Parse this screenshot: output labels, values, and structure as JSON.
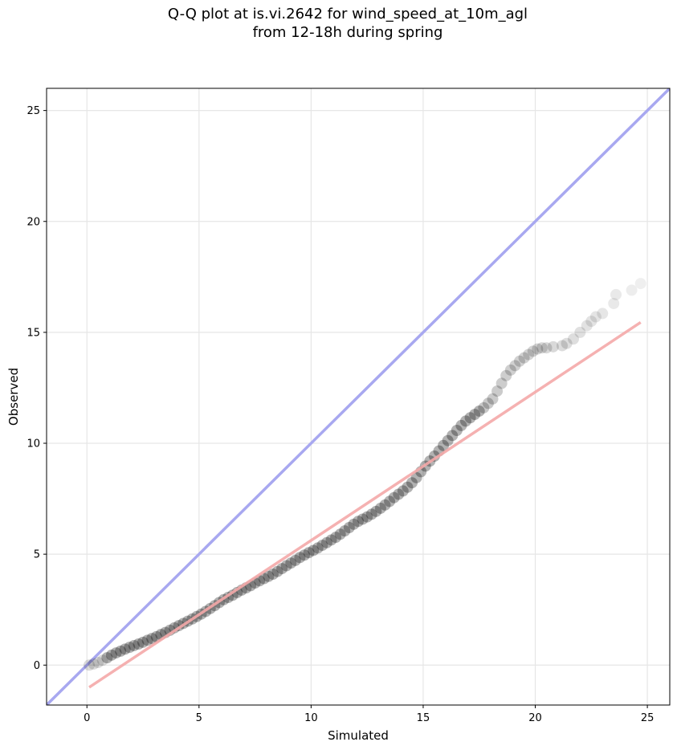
{
  "chart_data": {
    "type": "scatter",
    "title": "Q-Q plot at is.vi.2642 for wind_speed_at_10m_agl",
    "subtitle": "from 12-18h during spring",
    "xlabel": "Simulated",
    "ylabel": "Observed",
    "xlim": [
      -1.8,
      26
    ],
    "ylim": [
      -1.8,
      26
    ],
    "x_ticks": [
      0,
      5,
      10,
      15,
      20,
      25
    ],
    "y_ticks": [
      0,
      5,
      10,
      15,
      20,
      25
    ],
    "grid": true,
    "reference_line": {
      "from": [
        -1.8,
        -1.8
      ],
      "to": [
        26,
        26
      ],
      "color": "#a8a8f0"
    },
    "fit_line": {
      "from": [
        0.1,
        -1.0
      ],
      "to": [
        24.7,
        15.45
      ],
      "color": "#f4a8a8"
    },
    "point_color": "#000000",
    "x": [
      0.1,
      0.3,
      0.5,
      0.7,
      0.9,
      1.1,
      1.3,
      1.5,
      1.7,
      1.9,
      2.1,
      2.3,
      2.5,
      2.7,
      2.9,
      3.1,
      3.3,
      3.5,
      3.7,
      3.9,
      4.1,
      4.3,
      4.5,
      4.7,
      4.9,
      5.1,
      5.3,
      5.5,
      5.7,
      5.9,
      6.1,
      6.3,
      6.5,
      6.7,
      6.9,
      7.1,
      7.3,
      7.5,
      7.7,
      7.9,
      8.1,
      8.3,
      8.5,
      8.7,
      8.9,
      9.1,
      9.3,
      9.5,
      9.7,
      9.9,
      10.1,
      10.3,
      10.5,
      10.7,
      10.9,
      11.1,
      11.3,
      11.5,
      11.7,
      11.9,
      12.1,
      12.3,
      12.5,
      12.7,
      12.9,
      13.1,
      13.3,
      13.5,
      13.7,
      13.9,
      14.1,
      14.3,
      14.5,
      14.7,
      14.9,
      15.1,
      15.3,
      15.5,
      15.7,
      15.9,
      16.1,
      16.3,
      16.5,
      16.7,
      16.9,
      17.1,
      17.3,
      17.5,
      17.7,
      17.9,
      18.1,
      18.3,
      18.5,
      18.7,
      18.9,
      19.1,
      19.3,
      19.5,
      19.7,
      19.9,
      20.1,
      20.3,
      20.5,
      20.8,
      21.2,
      21.4,
      21.7,
      22.0,
      22.3,
      22.5,
      22.7,
      23.0,
      23.5,
      23.6,
      24.3,
      24.7
    ],
    "y": [
      0.0,
      0.05,
      0.12,
      0.22,
      0.33,
      0.45,
      0.55,
      0.63,
      0.72,
      0.8,
      0.88,
      0.95,
      1.03,
      1.12,
      1.2,
      1.28,
      1.38,
      1.47,
      1.57,
      1.68,
      1.78,
      1.88,
      1.98,
      2.08,
      2.19,
      2.3,
      2.42,
      2.55,
      2.68,
      2.82,
      2.95,
      3.05,
      3.15,
      3.27,
      3.38,
      3.48,
      3.58,
      3.7,
      3.8,
      3.9,
      4.0,
      4.1,
      4.22,
      4.35,
      4.48,
      4.6,
      4.72,
      4.85,
      4.96,
      5.07,
      5.17,
      5.28,
      5.4,
      5.52,
      5.64,
      5.76,
      5.9,
      6.05,
      6.2,
      6.35,
      6.48,
      6.58,
      6.68,
      6.8,
      6.93,
      7.07,
      7.22,
      7.38,
      7.55,
      7.7,
      7.85,
      8.02,
      8.22,
      8.45,
      8.72,
      8.97,
      9.2,
      9.42,
      9.65,
      9.9,
      10.12,
      10.35,
      10.58,
      10.8,
      11.0,
      11.15,
      11.3,
      11.45,
      11.6,
      11.8,
      12.0,
      12.35,
      12.7,
      13.05,
      13.3,
      13.5,
      13.7,
      13.85,
      14.0,
      14.15,
      14.25,
      14.3,
      14.3,
      14.35,
      14.4,
      14.5,
      14.7,
      15.0,
      15.3,
      15.5,
      15.7,
      15.85,
      16.3,
      16.7,
      16.9,
      17.2
    ]
  }
}
